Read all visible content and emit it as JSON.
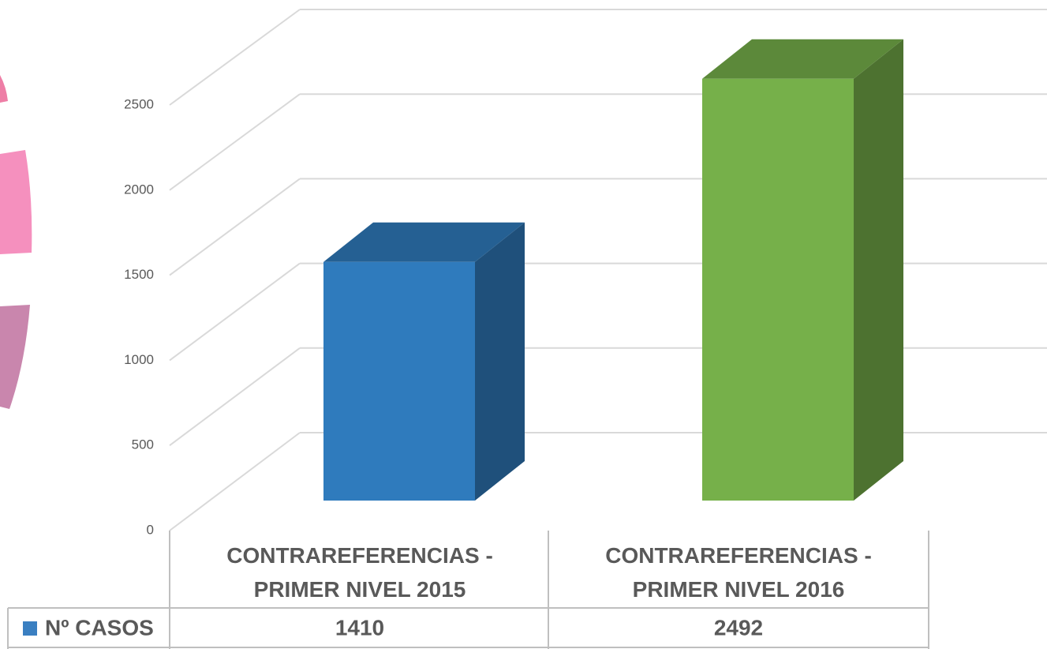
{
  "chart_data": {
    "type": "bar3d",
    "categories": [
      "CONTRAREFERENCIAS  - PRIMER NIVEL 2015",
      "CONTRAREFERENCIAS  - PRIMER NIVEL 2016"
    ],
    "series": [
      {
        "name": "Nº CASOS",
        "color": "#3a7fc1",
        "point_colors": [
          "#2f7bbd",
          "#76b04a"
        ],
        "values": [
          1410,
          2492
        ]
      }
    ],
    "ylim": [
      0,
      2500
    ],
    "yticks": [
      0,
      500,
      1000,
      1500,
      2000,
      2500
    ],
    "grid": true,
    "data_table": true
  }
}
